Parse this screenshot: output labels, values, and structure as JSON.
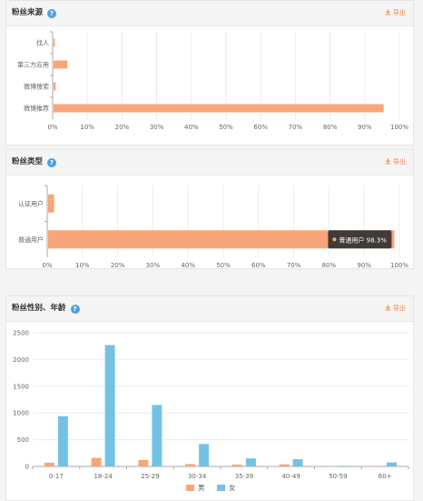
{
  "panels": {
    "source": {
      "title": "粉丝来源",
      "export_label": "导出"
    },
    "type": {
      "title": "粉丝类型",
      "export_label": "导出"
    },
    "demo": {
      "title": "粉丝性别、年龄",
      "export_label": "导出"
    }
  },
  "colors": {
    "male": "#f8a57a",
    "female": "#73c2e6",
    "accent": "#f08a4b",
    "help": "#4aa3df"
  },
  "chart_data": [
    {
      "type": "bar",
      "orientation": "horizontal",
      "categories": [
        "找人",
        "第三方应用",
        "微博搜索",
        "微博推荐"
      ],
      "values": [
        0.1,
        4,
        0.6,
        95.2
      ],
      "x_ticks": [
        "0%",
        "10%",
        "20%",
        "30%",
        "40%",
        "50%",
        "60%",
        "70%",
        "80%",
        "90%",
        "100%"
      ],
      "xlim": [
        0,
        100
      ],
      "grid": true,
      "title": "",
      "xlabel": "",
      "ylabel": ""
    },
    {
      "type": "bar",
      "orientation": "horizontal",
      "categories": [
        "认证用户",
        "普通用户"
      ],
      "values": [
        1.7,
        98.3
      ],
      "x_ticks": [
        "0%",
        "10%",
        "20%",
        "30%",
        "40%",
        "50%",
        "60%",
        "70%",
        "80%",
        "90%",
        "100%"
      ],
      "xlim": [
        0,
        100
      ],
      "grid": true,
      "tooltip": {
        "label": "普通用户 98.3%"
      },
      "title": "",
      "xlabel": "",
      "ylabel": ""
    },
    {
      "type": "bar",
      "categories": [
        "0-17",
        "18-24",
        "25-29",
        "30-34",
        "35-39",
        "40-49",
        "50-59",
        "60+"
      ],
      "series": [
        {
          "name": "男",
          "values": [
            70,
            160,
            120,
            45,
            35,
            40,
            8,
            10
          ]
        },
        {
          "name": "女",
          "values": [
            940,
            2270,
            1150,
            420,
            150,
            135,
            12,
            75
          ]
        }
      ],
      "y_ticks": [
        "0",
        "500",
        "1000",
        "1500",
        "2000",
        "2500"
      ],
      "ylim": [
        0,
        2500
      ],
      "grid": true,
      "legend": "bottom",
      "title": "",
      "xlabel": "",
      "ylabel": ""
    }
  ]
}
